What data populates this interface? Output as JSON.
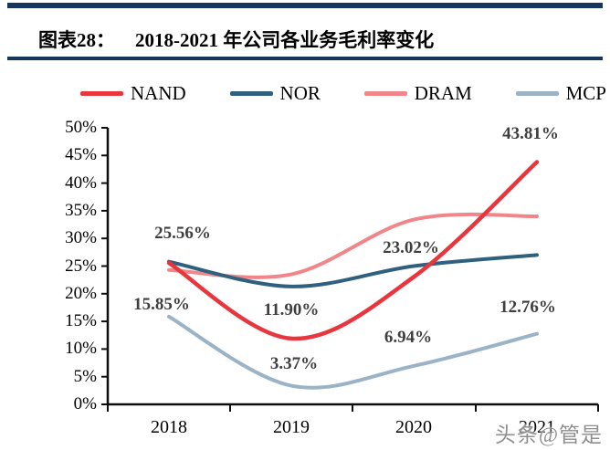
{
  "header": {
    "figure_label": "图表28：",
    "figure_title": "2018-2021 年公司各业务毛利率变化"
  },
  "watermark": "头条@管是",
  "colors": {
    "header_rule": "#17365d",
    "axis": "#0d0d0d",
    "data_label_text": "#3f3f3f"
  },
  "chart_data": {
    "type": "line",
    "smooth": true,
    "grid": false,
    "legend_position": "top",
    "categories": [
      "2018",
      "2019",
      "2020",
      "2021"
    ],
    "series": [
      {
        "name": "NAND",
        "color": "#e8363f",
        "stroke_width": 4.5,
        "values": [
          25.56,
          11.9,
          23.02,
          43.81
        ],
        "labels": [
          "25.56%",
          "11.90%",
          "23.02%",
          "43.81%"
        ]
      },
      {
        "name": "NOR",
        "color": "#2f617f",
        "stroke_width": 4,
        "values": [
          25.8,
          21.3,
          25.0,
          27.0
        ],
        "labels": [
          null,
          null,
          null,
          null
        ]
      },
      {
        "name": "DRAM",
        "color": "#f0868a",
        "stroke_width": 4,
        "values": [
          24.3,
          23.5,
          33.4,
          34.0
        ],
        "labels": [
          null,
          null,
          null,
          null
        ]
      },
      {
        "name": "MCP",
        "color": "#9ab3c6",
        "stroke_width": 4,
        "values": [
          15.85,
          3.37,
          6.94,
          12.76
        ],
        "labels": [
          "15.85%",
          "3.37%",
          "6.94%",
          "12.76%"
        ]
      }
    ],
    "ylim": [
      0,
      50
    ],
    "ytick_step": 5,
    "ytick_labels": [
      "0%",
      "5%",
      "10%",
      "15%",
      "20%",
      "25%",
      "30%",
      "35%",
      "40%",
      "45%",
      "50%"
    ],
    "xlabel": "",
    "ylabel": ""
  }
}
